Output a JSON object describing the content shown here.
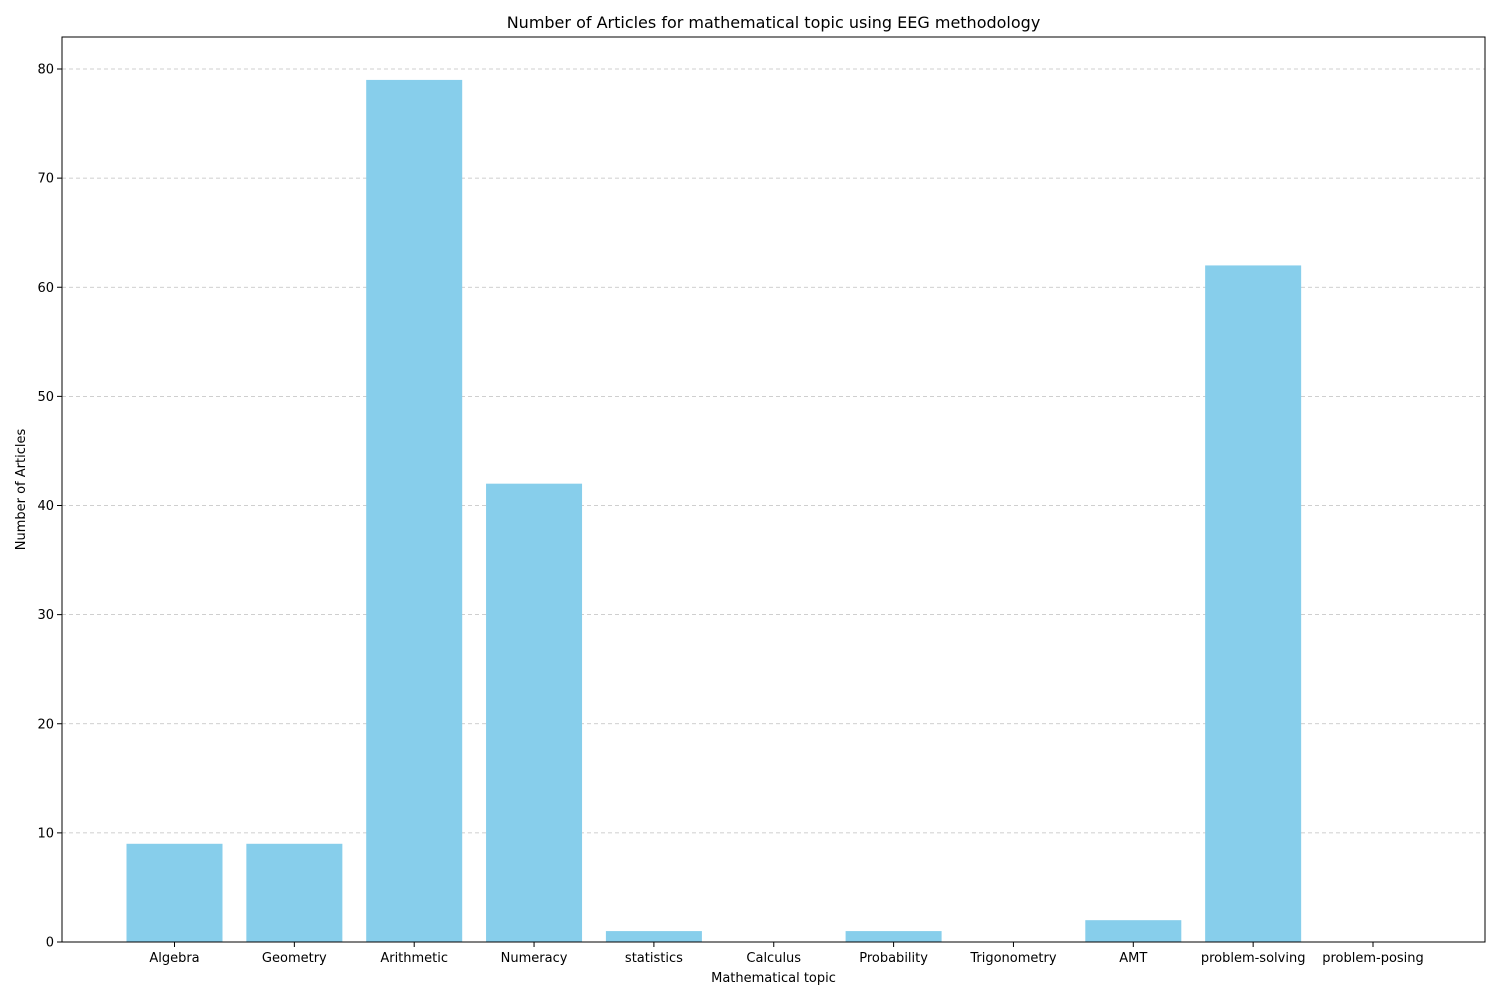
{
  "chart_data": {
    "type": "bar",
    "title": "Number of Articles for mathematical topic using EEG methodology",
    "xlabel": "Mathematical topic",
    "ylabel": "Number of Articles",
    "categories": [
      "Algebra",
      "Geometry",
      "Arithmetic",
      "Numeracy",
      "statistics",
      "Calculus",
      "Probability",
      "Trigonometry",
      "AMT",
      "problem-solving",
      "problem-posing"
    ],
    "values": [
      9,
      9,
      79,
      42,
      1,
      0,
      1,
      0,
      2,
      62,
      0
    ],
    "ylim": [
      0,
      83
    ],
    "yticks": [
      0,
      10,
      20,
      30,
      40,
      50,
      60,
      70,
      80
    ],
    "grid": "y-dashed",
    "bar_color": "#87ceeb"
  }
}
